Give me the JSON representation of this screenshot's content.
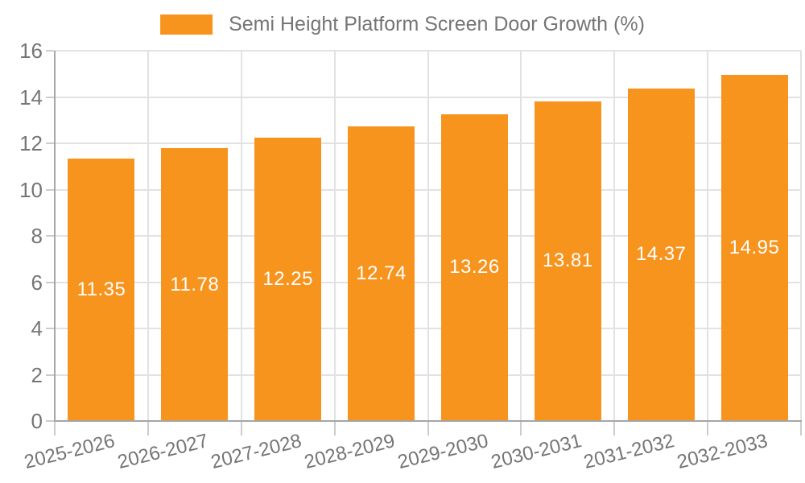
{
  "chart_data": {
    "type": "bar",
    "title": "Semi Height Platform Screen Door Growth (%)",
    "legend": {
      "label": "Semi Height Platform Screen Door Growth (%)",
      "position": "top-center"
    },
    "categories": [
      "2025-2026",
      "2026-2027",
      "2027-2028",
      "2028-2029",
      "2029-2030",
      "2030-2031",
      "2031-2032",
      "2032-2033"
    ],
    "series": [
      {
        "name": "Semi Height Platform Screen Door Growth (%)",
        "values": [
          11.35,
          11.78,
          12.25,
          12.74,
          13.26,
          13.81,
          14.37,
          14.95
        ]
      }
    ],
    "bar_labels": [
      "11.35",
      "11.78",
      "12.25",
      "12.74",
      "13.26",
      "13.81",
      "14.37",
      "14.95"
    ],
    "xlabel": "",
    "ylabel": "",
    "ylim": [
      0,
      16
    ],
    "yticks": [
      0,
      2,
      4,
      6,
      8,
      10,
      12,
      14,
      16
    ],
    "grid": true,
    "x_label_rotation_deg": -14,
    "colors": {
      "bar": "#F7941E",
      "bar_label_text": "#FFFFFF",
      "axis_line": "#A6A6A6",
      "gridline": "#E2E2E2",
      "tick": "#CCCCCC",
      "text": "#757575"
    }
  }
}
